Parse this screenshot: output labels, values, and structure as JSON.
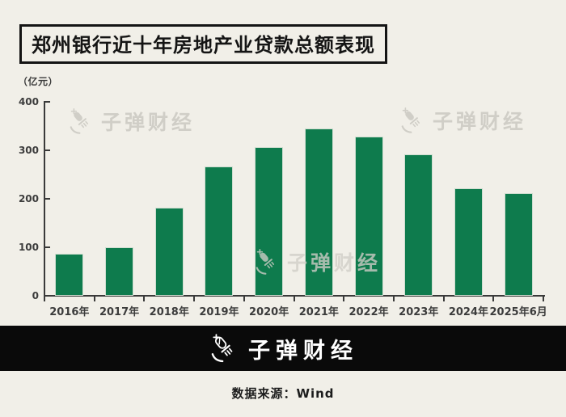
{
  "title": "郑州银行近十年房地产业贷款总额表现",
  "unit_label": "（亿元）",
  "watermark": {
    "text": "子弹财经"
  },
  "brand_bar": {
    "logo_text": "子弹财经"
  },
  "footer": {
    "source_label": "数据来源：Wind"
  },
  "colors": {
    "background": "#f1efe8",
    "bar": "#0e7b4d",
    "axis": "#3a3a3a",
    "title_ink": "#141414",
    "watermark": "#d0cec7",
    "brand_bar_bg": "#0a0a0a"
  },
  "icons": {
    "brand_logo": "bullet-logo-icon"
  },
  "chart_data": {
    "type": "bar",
    "title": "郑州银行近十年房地产业贷款总额表现",
    "categories": [
      "2016年",
      "2017年",
      "2018年",
      "2019年",
      "2020年",
      "2021年",
      "2022年",
      "2023年",
      "2024年",
      "2025年6月"
    ],
    "values": [
      87,
      100,
      182,
      267,
      306,
      345,
      329,
      292,
      222,
      211
    ],
    "xlabel": "",
    "ylabel": "（亿元）",
    "ylim": [
      0,
      400
    ],
    "yticks": [
      0,
      100,
      200,
      300,
      400
    ],
    "bar_color": "#0e7b4d",
    "grid": false,
    "legend": false,
    "watermark_text": "子弹财经",
    "source": "数据来源：Wind"
  }
}
